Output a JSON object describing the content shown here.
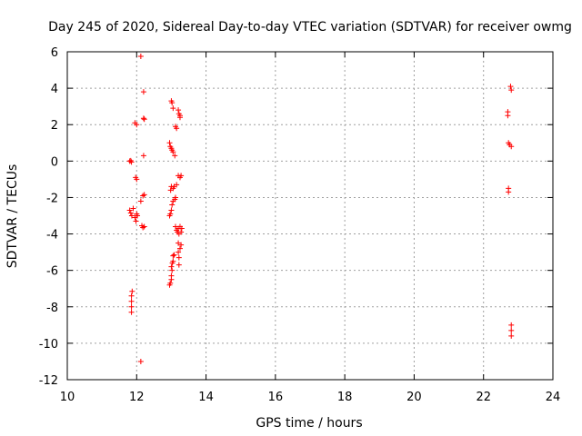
{
  "chart_data": {
    "type": "scatter",
    "title": "Day 245 of 2020, Sidereal Day-to-day VTEC variation (SDTVAR) for receiver owmg",
    "xlabel": "GPS time / hours",
    "ylabel": "SDTVAR / TECUs",
    "xlim": [
      10,
      24
    ],
    "ylim": [
      -12,
      6
    ],
    "xticks": [
      10,
      12,
      14,
      16,
      18,
      20,
      22,
      24
    ],
    "yticks": [
      -12,
      -10,
      -8,
      -6,
      -4,
      -2,
      0,
      2,
      4,
      6
    ],
    "grid": true,
    "marker": "+",
    "colors": {
      "points": "#ff0000",
      "grid": "#a0a0a0",
      "axes": "#000000"
    },
    "series": [
      {
        "name": "SDTVAR",
        "points": [
          [
            11.85,
            -8.3
          ],
          [
            11.85,
            -8.0
          ],
          [
            11.85,
            -7.7
          ],
          [
            11.85,
            -7.4
          ],
          [
            11.87,
            -7.15
          ],
          [
            11.8,
            0.0
          ],
          [
            11.83,
            0.02
          ],
          [
            11.85,
            -0.05
          ],
          [
            11.8,
            -2.7
          ],
          [
            11.83,
            -2.85
          ],
          [
            11.86,
            -3.0
          ],
          [
            11.9,
            -2.6
          ],
          [
            11.95,
            -3.1
          ],
          [
            11.98,
            -3.3
          ],
          [
            12.0,
            -2.9
          ],
          [
            12.02,
            -3.0
          ],
          [
            11.95,
            2.1
          ],
          [
            12.0,
            2.0
          ],
          [
            11.97,
            -0.9
          ],
          [
            12.0,
            -1.0
          ],
          [
            12.12,
            5.75
          ],
          [
            12.12,
            -11.0
          ],
          [
            12.12,
            -2.2
          ],
          [
            12.2,
            3.8
          ],
          [
            12.2,
            2.35
          ],
          [
            12.22,
            2.3
          ],
          [
            12.2,
            0.3
          ],
          [
            12.18,
            -1.9
          ],
          [
            12.22,
            -1.85
          ],
          [
            12.15,
            -3.55
          ],
          [
            12.18,
            -3.65
          ],
          [
            12.22,
            -3.6
          ],
          [
            12.95,
            -6.8
          ],
          [
            12.97,
            -6.7
          ],
          [
            13.0,
            -6.5
          ],
          [
            13.0,
            -6.3
          ],
          [
            13.02,
            -6.0
          ],
          [
            13.0,
            -5.8
          ],
          [
            13.03,
            -5.6
          ],
          [
            13.05,
            -5.5
          ],
          [
            13.05,
            -5.2
          ],
          [
            13.08,
            -5.15
          ],
          [
            13.0,
            3.3
          ],
          [
            13.02,
            3.2
          ],
          [
            13.05,
            2.9
          ],
          [
            12.95,
            1.0
          ],
          [
            12.97,
            0.8
          ],
          [
            13.0,
            0.7
          ],
          [
            13.02,
            0.6
          ],
          [
            13.05,
            0.5
          ],
          [
            13.1,
            0.3
          ],
          [
            12.95,
            -3.0
          ],
          [
            12.97,
            -2.9
          ],
          [
            13.0,
            -2.7
          ],
          [
            13.02,
            -2.4
          ],
          [
            13.05,
            -2.2
          ],
          [
            12.98,
            -1.6
          ],
          [
            13.0,
            -1.4
          ],
          [
            13.05,
            -1.5
          ],
          [
            13.08,
            -1.4
          ],
          [
            13.1,
            -2.1
          ],
          [
            13.12,
            -2.0
          ],
          [
            13.15,
            -1.3
          ],
          [
            13.15,
            1.8
          ],
          [
            13.12,
            1.9
          ],
          [
            13.2,
            2.8
          ],
          [
            13.22,
            2.6
          ],
          [
            13.25,
            2.5
          ],
          [
            13.25,
            2.4
          ],
          [
            13.2,
            -0.8
          ],
          [
            13.25,
            -0.9
          ],
          [
            13.28,
            -0.8
          ],
          [
            13.12,
            -3.6
          ],
          [
            13.15,
            -3.8
          ],
          [
            13.18,
            -3.9
          ],
          [
            13.2,
            -3.7
          ],
          [
            13.22,
            -4.0
          ],
          [
            13.25,
            -3.6
          ],
          [
            13.28,
            -3.9
          ],
          [
            13.3,
            -3.7
          ],
          [
            13.2,
            -4.5
          ],
          [
            13.2,
            -5.0
          ],
          [
            13.22,
            -5.3
          ],
          [
            13.22,
            -5.7
          ],
          [
            13.25,
            -4.8
          ],
          [
            13.28,
            -4.6
          ],
          [
            22.7,
            2.7
          ],
          [
            22.7,
            2.5
          ],
          [
            22.72,
            1.0
          ],
          [
            22.75,
            0.9
          ],
          [
            22.8,
            0.8
          ],
          [
            22.72,
            -1.5
          ],
          [
            22.72,
            -1.7
          ],
          [
            22.78,
            4.1
          ],
          [
            22.8,
            3.9
          ],
          [
            22.8,
            -9.0
          ],
          [
            22.8,
            -9.3
          ],
          [
            22.8,
            -9.6
          ]
        ]
      }
    ]
  }
}
